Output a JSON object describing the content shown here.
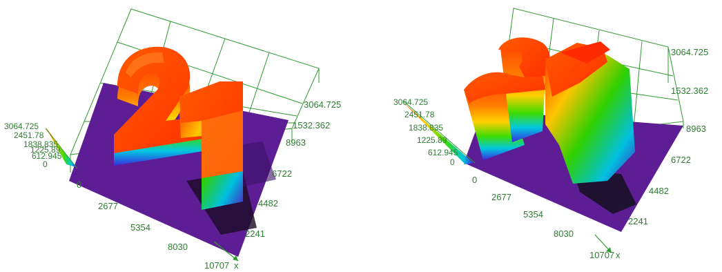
{
  "chart_data": [
    {
      "type": "surface3d",
      "title": "",
      "view": "top-oblique",
      "surface_shape": "digits \"21\"",
      "x_axis": {
        "label": "x",
        "ticks": [
          "0",
          "2677",
          "5354",
          "8030",
          "10707"
        ],
        "range": [
          0,
          10707
        ]
      },
      "y_axis": {
        "label": "",
        "ticks": [
          "2241",
          "4482",
          "6722",
          "8963"
        ],
        "range": [
          0,
          8963
        ]
      },
      "z_axis": {
        "label": "",
        "ticks": [
          "1532.362",
          "3064.725"
        ],
        "range": [
          0,
          3064.725
        ]
      },
      "colorbar": {
        "ticks": [
          "3064.725",
          "2451.78",
          "1838.835",
          "1225.89",
          "612.945",
          "0"
        ],
        "range": [
          0,
          3064.725
        ]
      },
      "base_color": "#5e1f96",
      "peak_color": "#ff3a00"
    },
    {
      "type": "surface3d",
      "title": "",
      "view": "side-oblique",
      "surface_shape": "digits \"21\"",
      "x_axis": {
        "label": "x",
        "ticks": [
          "0",
          "2677",
          "5354",
          "8030",
          "10707"
        ],
        "range": [
          0,
          10707
        ]
      },
      "y_axis": {
        "label": "",
        "ticks": [
          "2241",
          "4482",
          "6722",
          "8963"
        ],
        "range": [
          0,
          8963
        ]
      },
      "z_axis": {
        "label": "",
        "ticks": [
          "1532.362",
          "3064.725"
        ],
        "range": [
          0,
          3064.725
        ]
      },
      "colorbar": {
        "ticks": [
          "3064.725",
          "2451.78",
          "1838.835",
          "1225.89",
          "612.945",
          "0"
        ],
        "range": [
          0,
          3064.725
        ]
      },
      "base_color": "#5e1f96",
      "peak_color": "#ff3a00"
    }
  ]
}
